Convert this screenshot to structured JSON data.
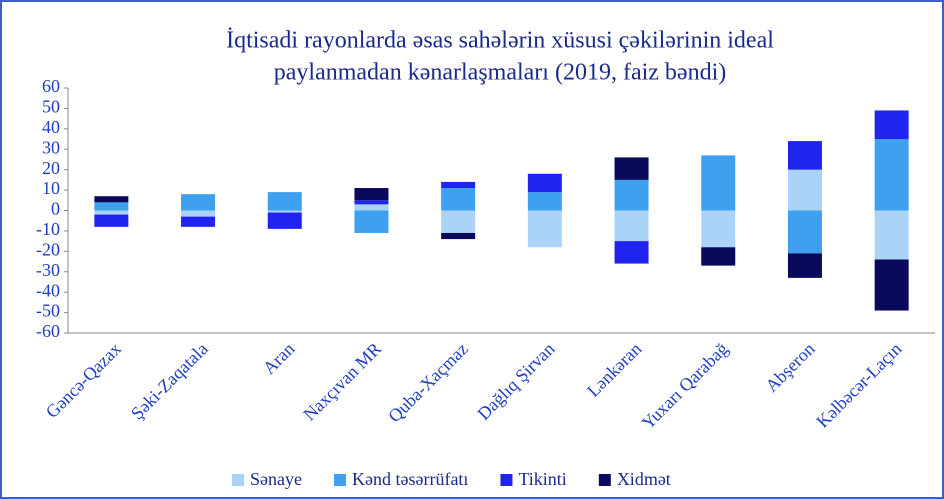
{
  "chart_data": {
    "type": "stacked_bar",
    "title": [
      "İqtisadi rayonlarda əsas sahələrin xüsusi çəkilərinin ideal",
      "paylanmadan kənarlaşmaları (2019, faiz bəndi)"
    ],
    "categories": [
      "Gəncə-Qazax",
      "Şəki-Zaqatala",
      "Aran",
      "Naxçıvan MR",
      "Quba-Xaçmaz",
      "Dağlıq Şirvan",
      "Lənkəran",
      "Yuxarı Qarabağ",
      "Abşeron",
      "Kəlbəcər-Laçın"
    ],
    "series": [
      {
        "name": "Sənaye",
        "color": "#a9d3f7",
        "values": [
          -2,
          -3,
          -1,
          3,
          -11,
          -18,
          -15,
          -18,
          20,
          -24
        ]
      },
      {
        "name": "Kənd təsərrüfatı",
        "color": "#3fa0f0",
        "values": [
          4,
          8,
          9,
          -11,
          11,
          9,
          15,
          27,
          -21,
          35
        ]
      },
      {
        "name": "Tikinti",
        "color": "#1f24f0",
        "values": [
          -6,
          -5,
          -8,
          2,
          3,
          9,
          -11,
          0,
          14,
          14
        ]
      },
      {
        "name": "Xidmət",
        "color": "#0a0a5c",
        "values": [
          3,
          0,
          0,
          6,
          -3,
          0,
          11,
          -9,
          -12,
          -25
        ]
      }
    ],
    "ylim": [
      -60,
      60
    ],
    "yticks": [
      -60,
      -50,
      -40,
      -30,
      -20,
      -10,
      0,
      10,
      20,
      30,
      40,
      50,
      60
    ]
  }
}
